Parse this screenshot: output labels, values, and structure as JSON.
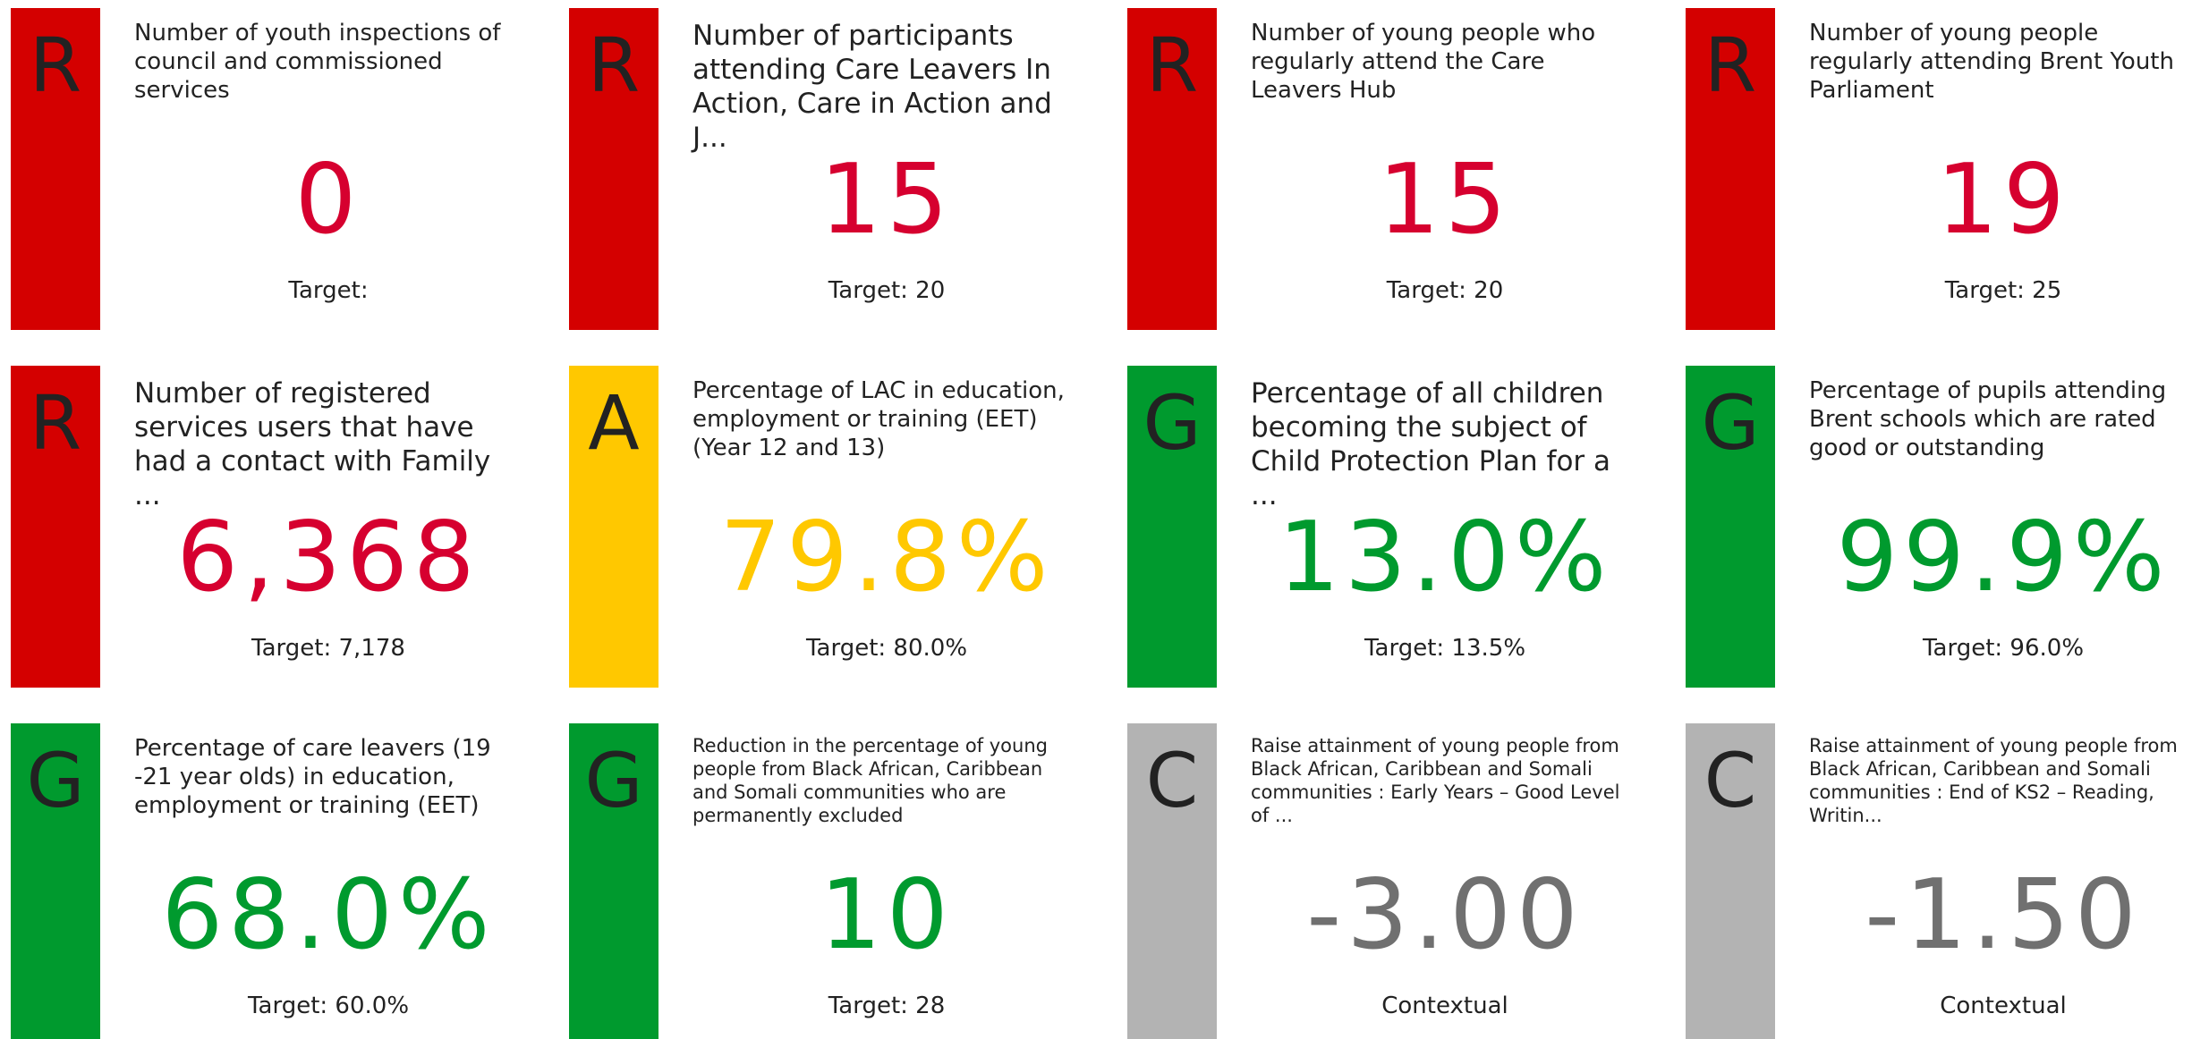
{
  "tiles": [
    {
      "letter": "R",
      "title": "Number of youth inspections of council and commissioned services",
      "value": "0",
      "target": "Target:",
      "bar_color": "#d40000",
      "value_color": "#d6002f"
    },
    {
      "letter": "R",
      "title": "Number of participants attending Care Leavers In Action, Care in Action and J...",
      "value": "15",
      "target": "Target: 20",
      "bar_color": "#d40000",
      "value_color": "#d6002f"
    },
    {
      "letter": "R",
      "title": "Number of young people who regularly attend the Care Leavers Hub",
      "value": "15",
      "target": "Target: 20",
      "bar_color": "#d40000",
      "value_color": "#d6002f"
    },
    {
      "letter": "R",
      "title": "Number of young people regularly attending Brent Youth Parliament",
      "value": "19",
      "target": "Target: 25",
      "bar_color": "#d40000",
      "value_color": "#d6002f"
    },
    {
      "letter": "R",
      "title": "Number of registered services users that have had a contact with Family ...",
      "value": "6,368",
      "target": "Target: 7,178",
      "bar_color": "#d40000",
      "value_color": "#d6002f"
    },
    {
      "letter": "A",
      "title": "Percentage of LAC in education, employment or training (EET) (Year 12 and 13)",
      "value": "79.8%",
      "target": "Target: 80.0%",
      "bar_color": "#ffc800",
      "value_color": "#ffc800"
    },
    {
      "letter": "G",
      "title": "Percentage of all children becoming the subject of Child Protection Plan for a ...",
      "value": "13.0%",
      "target": "Target: 13.5%",
      "bar_color": "#009a2e",
      "value_color": "#009a2e"
    },
    {
      "letter": "G",
      "title": "Percentage of pupils attending Brent schools which are rated good or outstanding",
      "value": "99.9%",
      "target": "Target: 96.0%",
      "bar_color": "#009a2e",
      "value_color": "#009a2e"
    },
    {
      "letter": "G",
      "title": "Percentage of care leavers (19 -21 year olds) in education, employment or training (EET)",
      "value": "68.0%",
      "target": "Target: 60.0%",
      "bar_color": "#009a2e",
      "value_color": "#009a2e"
    },
    {
      "letter": "G",
      "title": "Reduction in the percentage of young people from Black African, Caribbean and Somali communities who are permanently excluded",
      "value": "10",
      "target": "Target: 28",
      "bar_color": "#009a2e",
      "value_color": "#009a2e"
    },
    {
      "letter": "C",
      "title": "Raise attainment of young people from Black African, Caribbean and Somali communities : Early Years – Good Level of ...",
      "value": "-3.00",
      "target": "Contextual",
      "bar_color": "#b3b3b3",
      "value_color": "#707070"
    },
    {
      "letter": "C",
      "title": "Raise attainment of young people from Black African, Caribbean and Somali communities : End of KS2 – Reading, Writin...",
      "value": "-1.50",
      "target": "Contextual",
      "bar_color": "#b3b3b3",
      "value_color": "#707070"
    }
  ]
}
